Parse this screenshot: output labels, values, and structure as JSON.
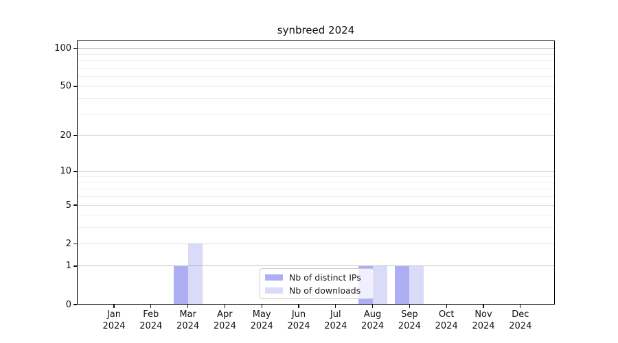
{
  "title": "synbreed 2024",
  "chart_data": {
    "type": "bar",
    "title": "synbreed 2024",
    "x_categories": [
      "Jan",
      "Feb",
      "Mar",
      "Apr",
      "May",
      "Jun",
      "Jul",
      "Aug",
      "Sep",
      "Oct",
      "Nov",
      "Dec"
    ],
    "x_year": "2024",
    "y_scale": "log10(value+1)",
    "ylim": [
      0,
      116
    ],
    "y_ticks": [
      100,
      50,
      20,
      10,
      5,
      2,
      1,
      0
    ],
    "y_minor_gridlines": [
      3,
      4,
      6,
      7,
      8,
      9,
      30,
      40,
      60,
      70,
      80,
      90
    ],
    "grid": {
      "decade_color": "#c3c3c3",
      "labeled_color": "#e0e0e0",
      "minor_color": "#eeeeee"
    },
    "series": [
      {
        "name": "Nb of distinct IPs",
        "key": "distinct-ips",
        "fill": "rgba(125,125,238,0.62)",
        "hex_on_white": "#aeaef4",
        "values": [
          0,
          0,
          1,
          0,
          0,
          0,
          0,
          1,
          1,
          0,
          0,
          0
        ]
      },
      {
        "name": "Nb of downloads",
        "key": "downloads",
        "fill": "rgba(140,140,235,0.32)",
        "hex_on_white": "#dadaf8",
        "values": [
          0,
          0,
          2,
          0,
          0,
          0,
          0,
          1,
          1,
          0,
          0,
          0
        ]
      }
    ],
    "legend": {
      "position": "inside-bottom-center"
    }
  }
}
